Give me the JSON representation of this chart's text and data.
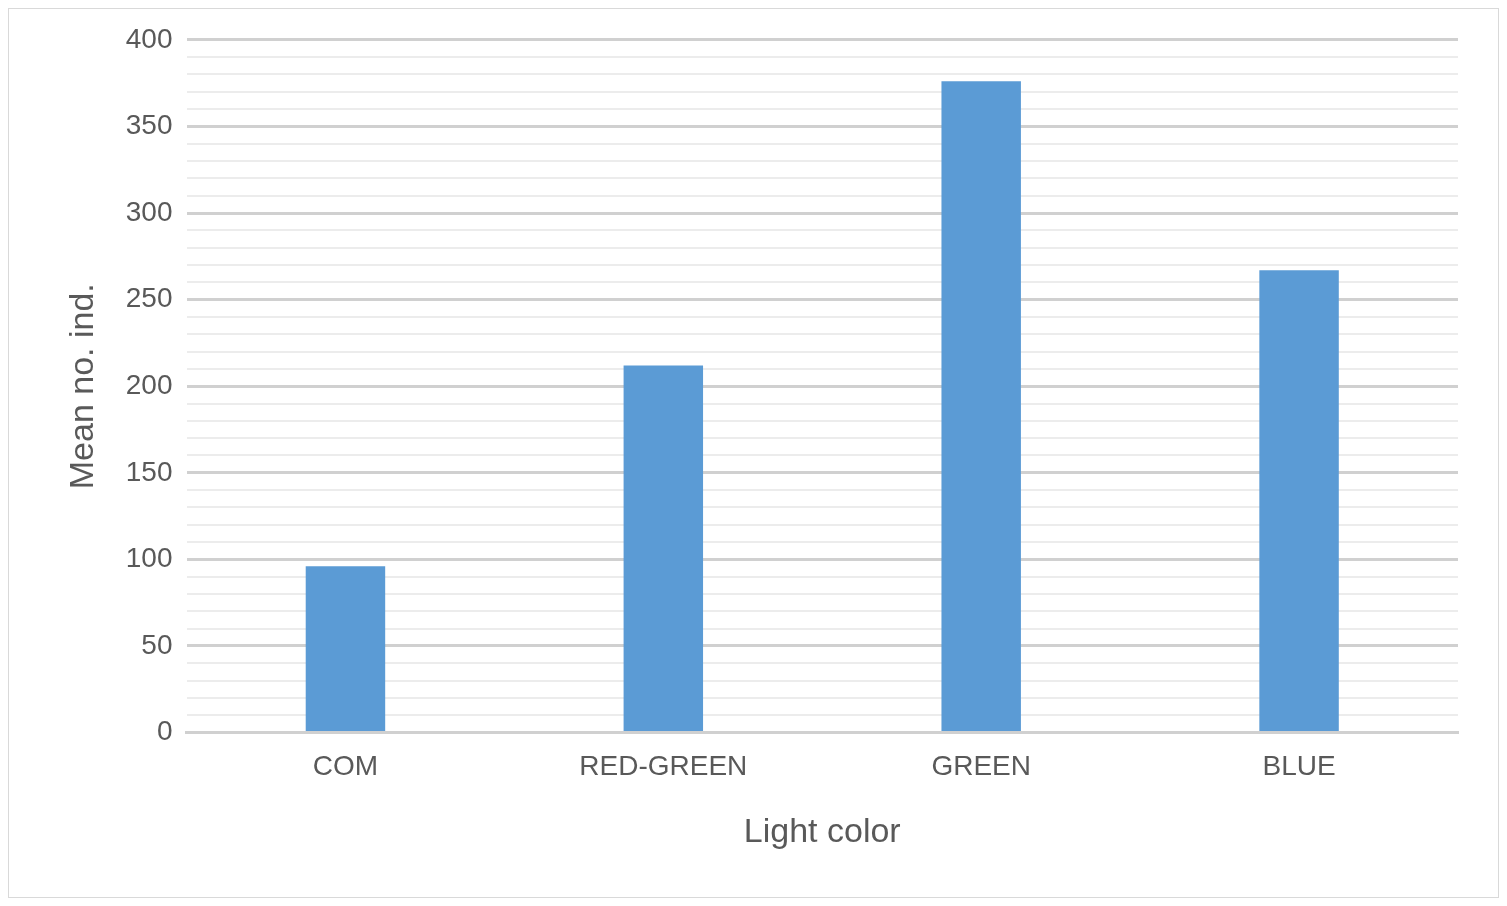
{
  "chart_data": {
    "type": "bar",
    "xlabel": "Light color",
    "ylabel": "Mean no. ind.",
    "categories": [
      "COM",
      "RED-GREEN",
      "GREEN",
      "BLUE"
    ],
    "values": [
      96,
      212,
      376,
      267
    ],
    "color": "#5b9bd5",
    "ylim": [
      0,
      400
    ],
    "yticks": [
      0,
      {
        "value": 10,
        "label": null
      },
      {
        "value": 20,
        "label": null
      },
      {
        "value": 30,
        "label": null
      },
      {
        "value": 40,
        "label": null
      },
      50,
      {
        "value": 60,
        "label": null
      },
      {
        "value": 70,
        "label": null
      },
      {
        "value": 80,
        "label": null
      },
      {
        "value": 90,
        "label": null
      },
      100,
      {
        "value": 110,
        "label": null
      },
      {
        "value": 120,
        "label": null
      },
      {
        "value": 130,
        "label": null
      },
      {
        "value": 140,
        "label": null
      },
      150,
      {
        "value": 160,
        "label": null
      },
      {
        "value": 170,
        "label": null
      },
      {
        "value": 180,
        "label": null
      },
      {
        "value": 190,
        "label": null
      },
      200,
      {
        "value": 210,
        "label": null
      },
      {
        "value": 220,
        "label": null
      },
      {
        "value": 230,
        "label": null
      },
      {
        "value": 240,
        "label": null
      },
      250,
      {
        "value": 260,
        "label": null
      },
      {
        "value": 270,
        "label": null
      },
      {
        "value": 280,
        "label": null
      },
      {
        "value": 290,
        "label": null
      },
      300,
      {
        "value": 310,
        "label": null
      },
      {
        "value": 320,
        "label": null
      },
      {
        "value": 330,
        "label": null
      },
      {
        "value": 340,
        "label": null
      },
      350,
      {
        "value": 360,
        "label": null
      },
      {
        "value": 370,
        "label": null
      },
      {
        "value": 380,
        "label": null
      },
      {
        "value": 390,
        "label": null
      },
      400
    ],
    "grid": "y"
  }
}
